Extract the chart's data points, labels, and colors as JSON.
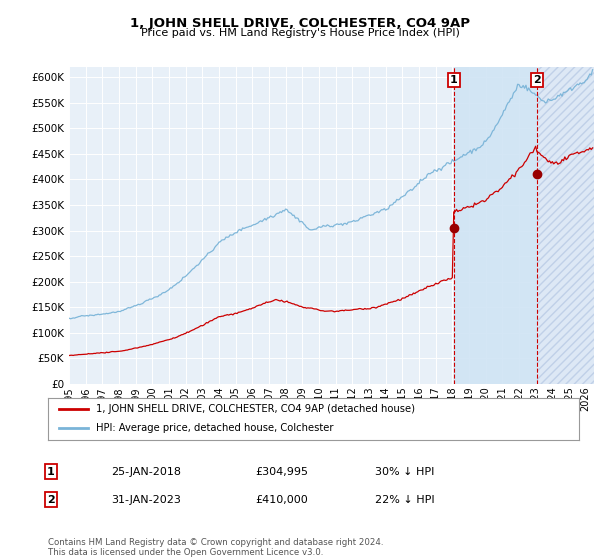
{
  "title": "1, JOHN SHELL DRIVE, COLCHESTER, CO4 9AP",
  "subtitle": "Price paid vs. HM Land Registry's House Price Index (HPI)",
  "ytick_values": [
    0,
    50000,
    100000,
    150000,
    200000,
    250000,
    300000,
    350000,
    400000,
    450000,
    500000,
    550000,
    600000
  ],
  "hpi_color": "#7ab4d8",
  "price_color": "#cc0000",
  "vline_color": "#cc0000",
  "plot_bg_color": "#e8f0f8",
  "shade_between_color": "#ccddf0",
  "legend_label_price": "1, JOHN SHELL DRIVE, COLCHESTER, CO4 9AP (detached house)",
  "legend_label_hpi": "HPI: Average price, detached house, Colchester",
  "note1_num": "1",
  "note1_date": "25-JAN-2018",
  "note1_price": "£304,995",
  "note1_pct": "30% ↓ HPI",
  "note2_num": "2",
  "note2_date": "31-JAN-2023",
  "note2_price": "£410,000",
  "note2_pct": "22% ↓ HPI",
  "footer": "Contains HM Land Registry data © Crown copyright and database right 2024.\nThis data is licensed under the Open Government Licence v3.0.",
  "sale1_x": 2018.08,
  "sale1_y": 304995,
  "sale2_x": 2023.08,
  "sale2_y": 410000,
  "ylim": [
    0,
    620000
  ],
  "xlim_start": 1995,
  "xlim_end": 2026.5
}
